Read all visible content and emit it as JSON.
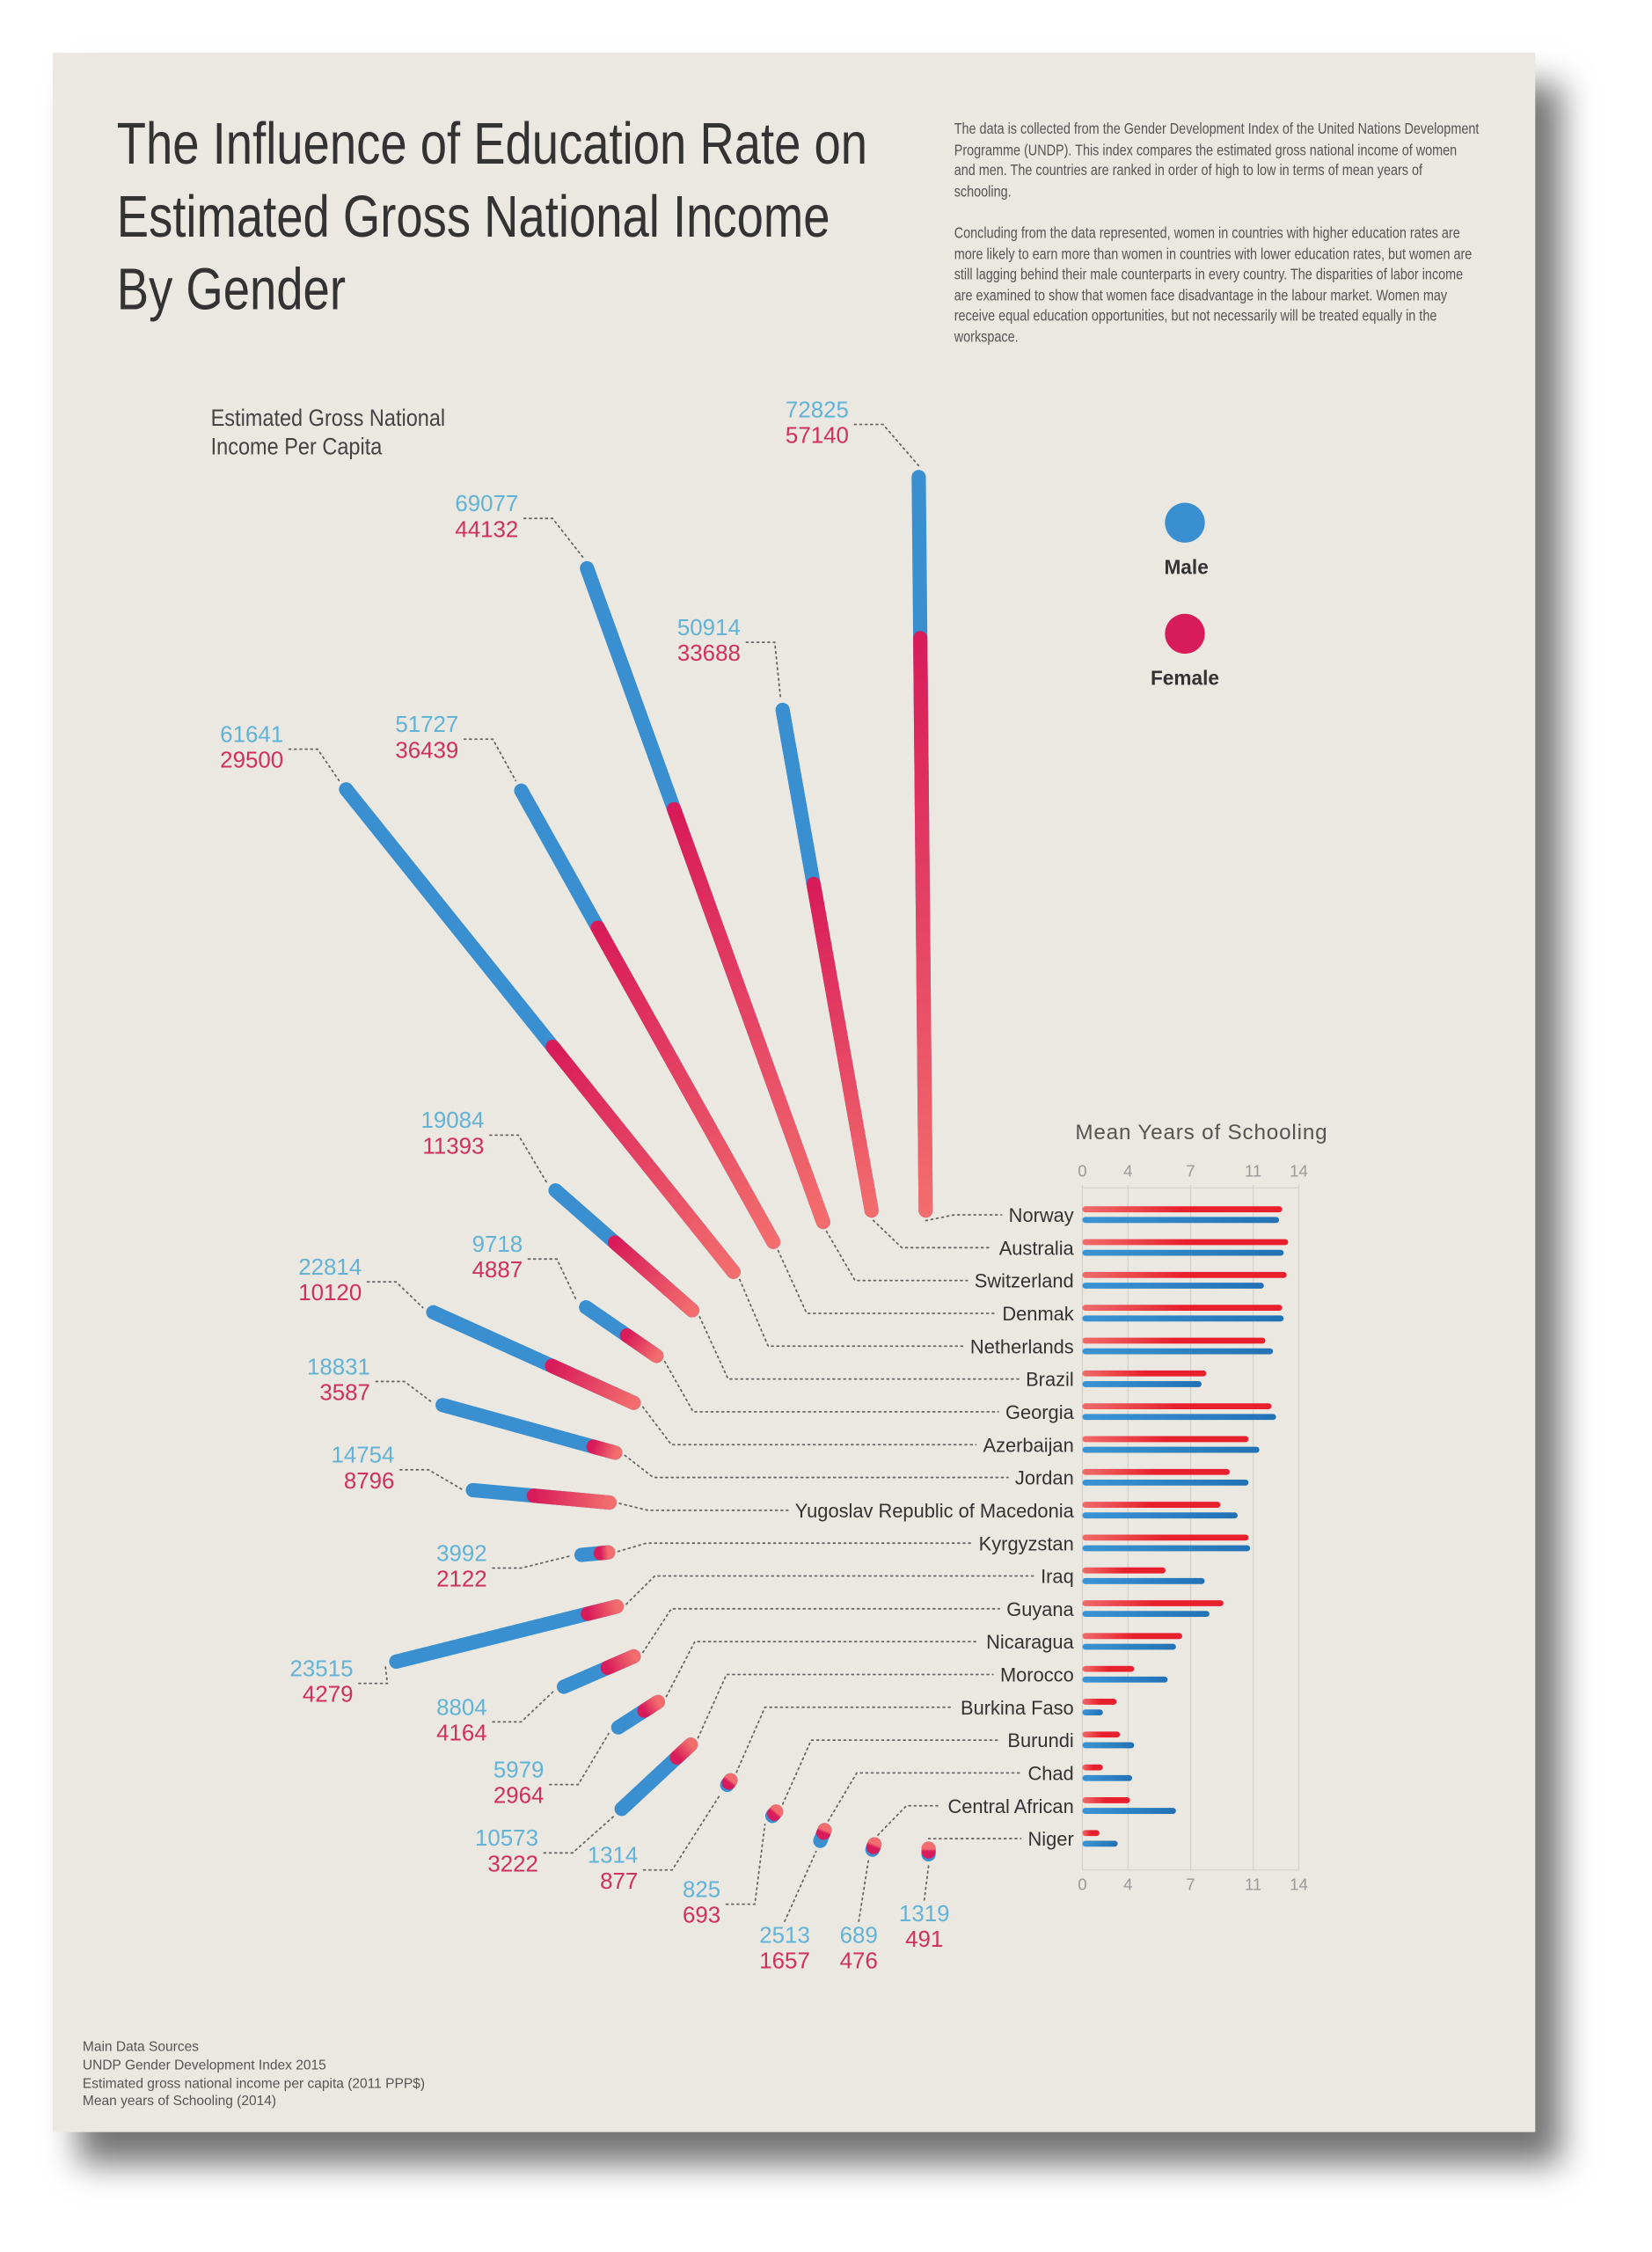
{
  "title": [
    "The Influence of Education Rate on",
    "Estimated Gross National Income",
    "By Gender"
  ],
  "description": [
    "The data is collected from the Gender Development Index of the United Nations Development Programme (UNDP). This index compares the estimated gross national income of women and men. The countries are ranked in order of high to low in terms of mean years of schooling.",
    "Concluding from the data represented, women in countries with higher education rates are more likely to earn more than women in countries with lower education rates, but women are still lagging behind their male counterparts in every country. The disparities of labor income are examined to show that women face disadvantage in the labour market. Women may receive equal education opportunities, but not necessarily will be treated equally in the workspace."
  ],
  "income_axis_label": [
    "Estimated Gross National",
    "Income Per Capita"
  ],
  "legend": {
    "male": "Male",
    "female": "Female",
    "male_color": "#3a8fd0",
    "female_color": "#d81b5a"
  },
  "colors": {
    "male_bar": "#3a8fd0",
    "female_bar_dark": "#d81b5a",
    "female_bar_light": "#f26d6d",
    "male_number": "#62b3d6",
    "female_number": "#d0305e",
    "background": "#ebe8e2"
  },
  "footer": [
    "Main Data Sources",
    "UNDP Gender Development Index 2015",
    "Estimated gross national income per capita (2011 PPP$)",
    "Mean years of Schooling (2014)"
  ],
  "chart_data": [
    {
      "type": "radial-bar",
      "title": "Estimated Gross National Income Per Capita",
      "countries": [
        "Norway",
        "Australia",
        "Switzerland",
        "Denmak",
        "Netherlands",
        "Brazil",
        "Georgia",
        "Azerbaijan",
        "Jordan",
        "Yugoslav Republic of Macedonia",
        "Kyrgyzstan",
        "Iraq",
        "Guyana",
        "Nicaragua",
        "Morocco",
        "Burkina Faso",
        "Burundi",
        "Chad",
        "Central African",
        "Niger"
      ],
      "series": [
        {
          "name": "Male",
          "values": [
            72825,
            50914,
            69077,
            51727,
            61641,
            19084,
            9718,
            22814,
            18831,
            14754,
            3992,
            23515,
            8804,
            5979,
            10573,
            1314,
            825,
            2513,
            689,
            1319
          ]
        },
        {
          "name": "Female",
          "values": [
            57140,
            33688,
            44132,
            36439,
            29500,
            11393,
            4887,
            10120,
            3587,
            8796,
            2122,
            4279,
            4164,
            2964,
            3222,
            877,
            693,
            1657,
            476,
            491
          ]
        }
      ]
    },
    {
      "type": "bar",
      "title": "Mean Years of Schooling",
      "categories": [
        "Norway",
        "Australia",
        "Switzerland",
        "Denmak",
        "Netherlands",
        "Brazil",
        "Georgia",
        "Azerbaijan",
        "Jordan",
        "Yugoslav Republic of Macedonia",
        "Kyrgyzstan",
        "Iraq",
        "Guyana",
        "Nicaragua",
        "Morocco",
        "Burkina Faso",
        "Burundi",
        "Chad",
        "Central African",
        "Niger"
      ],
      "xticks": [
        "0",
        "4",
        "7",
        "11",
        "14"
      ],
      "xlim": [
        0,
        14
      ],
      "grid": true,
      "series": [
        {
          "name": "Female",
          "values": [
            12.9,
            13.3,
            13.2,
            12.9,
            11.8,
            8.0,
            12.2,
            10.7,
            9.5,
            8.9,
            10.7,
            5.8,
            9.1,
            6.6,
            4.3,
            3.0,
            3.3,
            1.8,
            4.1,
            1.5
          ]
        },
        {
          "name": "Male",
          "values": [
            12.7,
            13.0,
            11.7,
            13.0,
            12.3,
            7.7,
            12.5,
            11.4,
            10.7,
            10.0,
            10.8,
            7.9,
            8.2,
            6.3,
            5.9,
            1.8,
            4.3,
            4.2,
            6.3,
            3.1
          ]
        }
      ]
    }
  ]
}
